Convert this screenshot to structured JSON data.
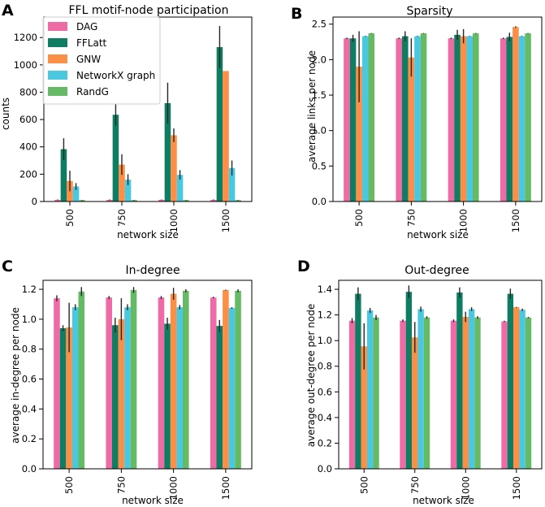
{
  "colors": {
    "DAG": "#ef6ba6",
    "FFLatt": "#0f7d62",
    "GNW": "#fb8f47",
    "NetworkX graph": "#4ac8e0",
    "RandG": "#66b965"
  },
  "chart_data": [
    {
      "type": "bar",
      "letter": "A",
      "title": "FFL motif-node participation",
      "xlabel": "network size",
      "ylabel": "counts",
      "categories": [
        "500",
        "750",
        "1000",
        "1500"
      ],
      "ylim": [
        0,
        1350
      ],
      "yticks": [
        0,
        200,
        400,
        600,
        800,
        1000,
        1200
      ],
      "ytick_labels": [
        "0",
        "200",
        "400",
        "600",
        "800",
        "1000",
        "1200"
      ],
      "legend_position": "top-left",
      "legend": [
        "DAG",
        "FFLatt",
        "GNW",
        "NetworkX graph",
        "RandG"
      ],
      "series": [
        {
          "name": "DAG",
          "values": [
            12,
            12,
            12,
            12
          ],
          "err": [
            3,
            3,
            3,
            3
          ]
        },
        {
          "name": "FFLatt",
          "values": [
            383,
            635,
            720,
            1130
          ],
          "err": [
            80,
            80,
            150,
            155
          ]
        },
        {
          "name": "GNW",
          "values": [
            150,
            270,
            485,
            955
          ],
          "err": [
            75,
            75,
            50,
            0
          ]
        },
        {
          "name": "NetworkX graph",
          "values": [
            110,
            160,
            195,
            245
          ],
          "err": [
            25,
            40,
            35,
            55
          ]
        },
        {
          "name": "RandG",
          "values": [
            10,
            10,
            10,
            10
          ],
          "err": [
            2,
            2,
            2,
            2
          ]
        }
      ]
    },
    {
      "type": "bar",
      "letter": "B",
      "title": "Sparsity",
      "xlabel": "network size",
      "ylabel": "average links per node",
      "categories": [
        "500",
        "750",
        "1000",
        "1500"
      ],
      "ylim": [
        0,
        2.6
      ],
      "yticks": [
        0,
        0.5,
        1.0,
        1.5,
        2.0,
        2.5
      ],
      "ytick_labels": [
        "0.0",
        "0.5",
        "1.0",
        "1.5",
        "2.0",
        "2.5"
      ],
      "series": [
        {
          "name": "DAG",
          "values": [
            2.3,
            2.3,
            2.3,
            2.3
          ],
          "err": [
            0.01,
            0.01,
            0.01,
            0.01
          ]
        },
        {
          "name": "FFLatt",
          "values": [
            2.3,
            2.33,
            2.35,
            2.32
          ],
          "err": [
            0.05,
            0.07,
            0.07,
            0.06
          ]
        },
        {
          "name": "GNW",
          "values": [
            1.9,
            2.03,
            2.33,
            2.46
          ],
          "err": [
            0.5,
            0.27,
            0.1,
            0.01
          ]
        },
        {
          "name": "NetworkX graph",
          "values": [
            2.33,
            2.33,
            2.33,
            2.33
          ],
          "err": [
            0.005,
            0.005,
            0.005,
            0.005
          ]
        },
        {
          "name": "RandG",
          "values": [
            2.37,
            2.37,
            2.37,
            2.37
          ],
          "err": [
            0.005,
            0.005,
            0.005,
            0.005
          ]
        }
      ]
    },
    {
      "type": "bar",
      "letter": "C",
      "title": "In-degree",
      "xlabel": "network size",
      "ylabel": "average in-degree per node",
      "categories": [
        "500",
        "750",
        "1000",
        "1500"
      ],
      "ylim": [
        0,
        1.26
      ],
      "yticks": [
        0,
        0.2,
        0.4,
        0.6,
        0.8,
        1.0,
        1.2
      ],
      "ytick_labels": [
        "0.0",
        "0.2",
        "0.4",
        "0.6",
        "0.8",
        "1.0",
        "1.2"
      ],
      "series": [
        {
          "name": "DAG",
          "values": [
            1.14,
            1.145,
            1.145,
            1.145
          ],
          "err": [
            0.02,
            0.01,
            0.01,
            0.005
          ]
        },
        {
          "name": "FFLatt",
          "values": [
            0.94,
            0.96,
            0.97,
            0.955
          ],
          "err": [
            0.02,
            0.05,
            0.04,
            0.04
          ]
        },
        {
          "name": "GNW",
          "values": [
            0.945,
            1.0,
            1.17,
            1.195
          ],
          "err": [
            0.165,
            0.14,
            0.04,
            0.003
          ]
        },
        {
          "name": "NetworkX graph",
          "values": [
            1.08,
            1.08,
            1.08,
            1.075
          ],
          "err": [
            0.02,
            0.02,
            0.015,
            0.005
          ]
        },
        {
          "name": "RandG",
          "values": [
            1.185,
            1.195,
            1.19,
            1.19
          ],
          "err": [
            0.03,
            0.02,
            0.01,
            0.01
          ]
        }
      ]
    },
    {
      "type": "bar",
      "letter": "D",
      "title": "Out-degree",
      "xlabel": "network size",
      "ylabel": "average out-degree per node",
      "categories": [
        "500",
        "750",
        "1000",
        "1500"
      ],
      "ylim": [
        0,
        1.47
      ],
      "yticks": [
        0,
        0.2,
        0.4,
        0.6,
        0.8,
        1.0,
        1.2,
        1.4
      ],
      "ytick_labels": [
        "0.0",
        "0.2",
        "0.4",
        "0.6",
        "0.8",
        "1.0",
        "1.2",
        "1.4"
      ],
      "series": [
        {
          "name": "DAG",
          "values": [
            1.155,
            1.155,
            1.155,
            1.15
          ],
          "err": [
            0.02,
            0.01,
            0.01,
            0.005
          ]
        },
        {
          "name": "FFLatt",
          "values": [
            1.365,
            1.38,
            1.375,
            1.365
          ],
          "err": [
            0.05,
            0.05,
            0.04,
            0.04
          ]
        },
        {
          "name": "GNW",
          "values": [
            0.955,
            1.025,
            1.185,
            1.26
          ],
          "err": [
            0.18,
            0.12,
            0.04,
            0.003
          ]
        },
        {
          "name": "NetworkX graph",
          "values": [
            1.235,
            1.245,
            1.245,
            1.24
          ],
          "err": [
            0.02,
            0.02,
            0.015,
            0.01
          ]
        },
        {
          "name": "RandG",
          "values": [
            1.18,
            1.18,
            1.18,
            1.18
          ],
          "err": [
            0.02,
            0.01,
            0.01,
            0.005
          ]
        }
      ]
    }
  ]
}
